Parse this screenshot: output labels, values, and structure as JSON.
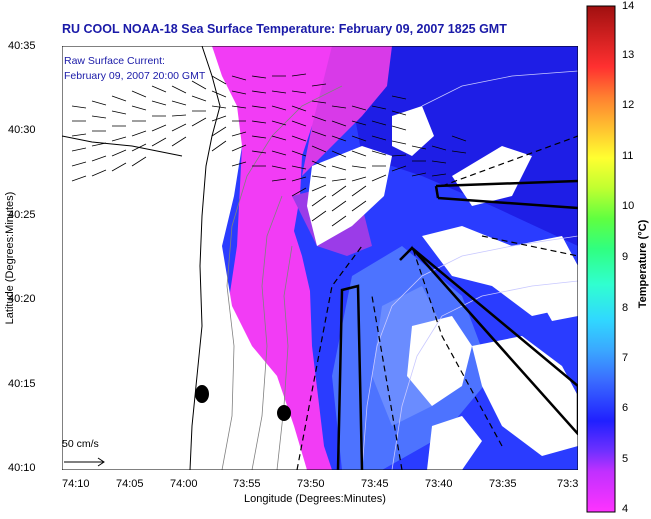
{
  "header": {
    "title": "RU COOL  NOAA-18  Sea Surface Temperature:  February 09, 2007 1825 GMT"
  },
  "overlay": {
    "current_label": "Raw Surface Current:",
    "current_time": "February 09, 2007 20:00 GMT",
    "scale_label": "50 cm/s"
  },
  "axes": {
    "xlabel": "Longitude (Degrees:Minutes)",
    "ylabel": "Latitude (Degrees:Minutes)",
    "xticks": [
      "74:10",
      "74:05",
      "74:00",
      "73:55",
      "73:50",
      "73:45",
      "73:40",
      "73:35",
      "73:3"
    ],
    "yticks": [
      "40:35",
      "40:30",
      "40:25",
      "40:20",
      "40:15",
      "40:10"
    ]
  },
  "colorbar": {
    "label": "Temperature (°C)",
    "ticks": [
      "14",
      "13",
      "12",
      "11",
      "10",
      "9",
      "8",
      "7",
      "6",
      "5",
      "4"
    ],
    "min": 4,
    "max": 14
  },
  "colors": {
    "title": "#1a1aa8",
    "land": "#ffffff",
    "warm_water": "#ff33ff",
    "cool_water": "#2828ff"
  }
}
